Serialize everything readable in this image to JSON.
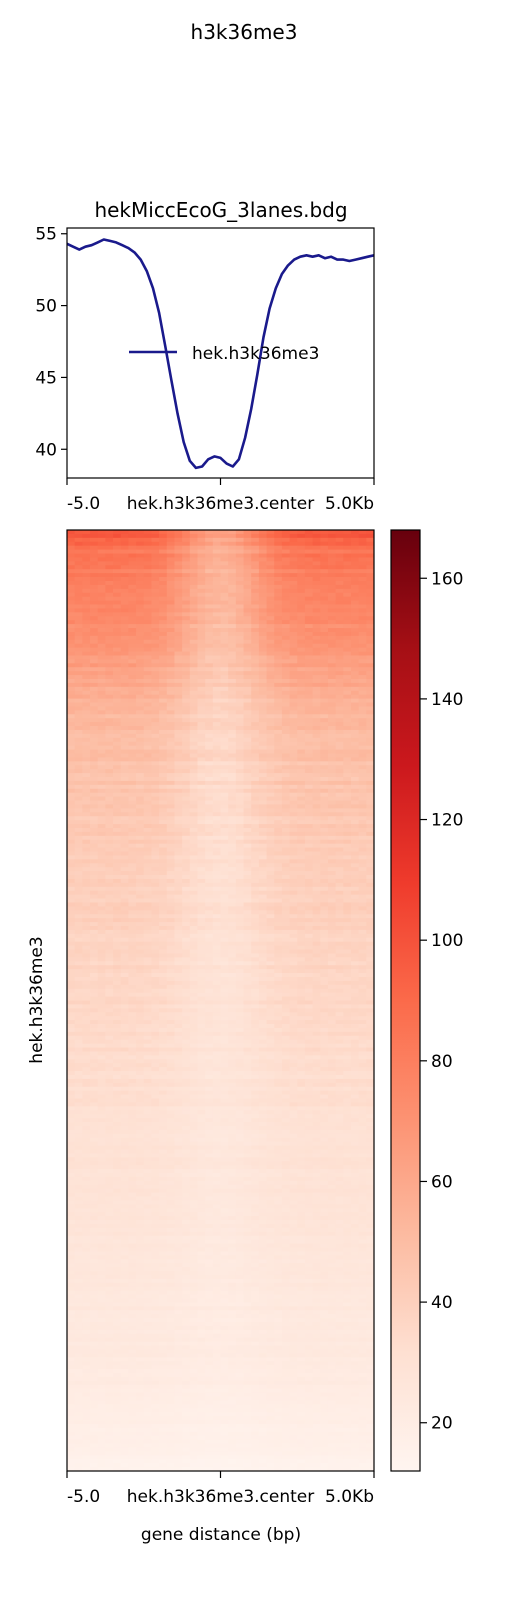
{
  "figure": {
    "suptitle": "h3k36me3"
  },
  "chart_data": [
    {
      "type": "line",
      "title": "hekMiccEcoG_3lanes.bdg",
      "xlabel": "",
      "ylabel": "",
      "x_tick_labels": [
        "-5.0",
        "hek.h3k36me3.center",
        "5.0Kb"
      ],
      "xlim": [
        -5000,
        5000
      ],
      "ylim": [
        38,
        55.4
      ],
      "y_ticks": [
        40,
        45,
        50,
        55
      ],
      "legend": "center",
      "series": [
        {
          "name": "hek.h3k36me3",
          "color": "#1a1a8c",
          "x": [
            -5000,
            -4800,
            -4600,
            -4400,
            -4200,
            -4000,
            -3800,
            -3600,
            -3400,
            -3200,
            -3000,
            -2800,
            -2600,
            -2400,
            -2200,
            -2000,
            -1800,
            -1600,
            -1400,
            -1200,
            -1000,
            -800,
            -600,
            -400,
            -200,
            0,
            200,
            400,
            600,
            800,
            1000,
            1200,
            1400,
            1600,
            1800,
            2000,
            2200,
            2400,
            2600,
            2800,
            3000,
            3200,
            3400,
            3600,
            3800,
            4000,
            4200,
            4400,
            4600,
            4800,
            5000
          ],
          "values": [
            54.3,
            54.1,
            53.9,
            54.1,
            54.2,
            54.4,
            54.6,
            54.5,
            54.4,
            54.2,
            54.0,
            53.7,
            53.2,
            52.4,
            51.2,
            49.5,
            47.2,
            44.8,
            42.5,
            40.5,
            39.2,
            38.7,
            38.8,
            39.3,
            39.5,
            39.4,
            39.0,
            38.8,
            39.3,
            40.8,
            42.8,
            45.2,
            47.8,
            49.8,
            51.2,
            52.2,
            52.8,
            53.2,
            53.4,
            53.5,
            53.4,
            53.5,
            53.3,
            53.4,
            53.2,
            53.2,
            53.1,
            53.2,
            53.3,
            53.4,
            53.5
          ]
        }
      ]
    },
    {
      "type": "heatmap",
      "ylabel": "hek.h3k36me3",
      "xlabel": "gene distance (bp)",
      "x_tick_labels": [
        "-5.0",
        "hek.h3k36me3.center",
        "5.0Kb"
      ],
      "colormap": "Reds",
      "color_range": [
        12,
        168
      ],
      "colorbar_ticks": [
        20,
        40,
        60,
        80,
        100,
        120,
        140,
        160
      ],
      "columns": 40,
      "rows_sorted": "descending",
      "row_mean_profile": [
        [
          0.0,
          100
        ],
        [
          0.02,
          85
        ],
        [
          0.06,
          78
        ],
        [
          0.12,
          70
        ],
        [
          0.15,
          62
        ],
        [
          0.2,
          52
        ],
        [
          0.3,
          44
        ],
        [
          0.45,
          38
        ],
        [
          0.6,
          32
        ],
        [
          0.75,
          27
        ],
        [
          0.9,
          22
        ],
        [
          1.0,
          15
        ]
      ],
      "center_dip_strength": 0.35
    }
  ]
}
